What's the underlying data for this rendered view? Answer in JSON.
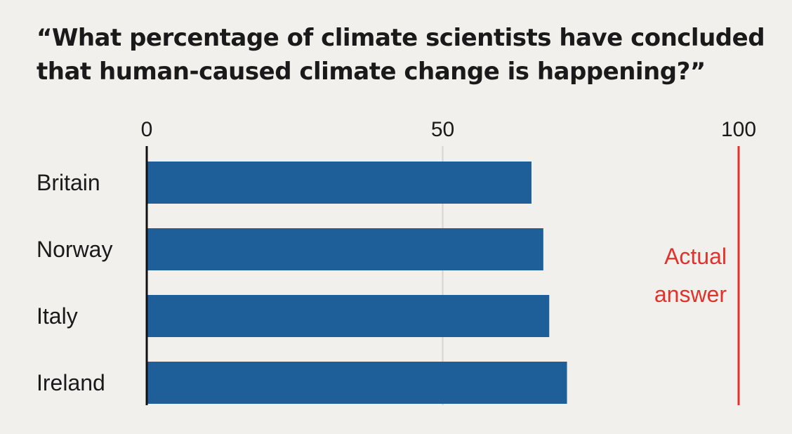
{
  "chart_data": {
    "type": "bar",
    "orientation": "horizontal",
    "title": "“What percentage of climate scientists have concluded that human-caused climate change is happening?”",
    "categories": [
      "Britain",
      "Norway",
      "Italy",
      "Ireland"
    ],
    "values": [
      65,
      67,
      68,
      71
    ],
    "xlim": [
      0,
      100
    ],
    "xticks": [
      {
        "value": 0,
        "label": "0"
      },
      {
        "value": 50,
        "label": "50"
      },
      {
        "value": 100,
        "label": "100"
      }
    ],
    "grid": "vertical line at 50",
    "bar_color": "#1f5f99",
    "annotation": {
      "value": 100,
      "lines": [
        "Actual",
        "answer"
      ],
      "color": "#e3322b"
    }
  }
}
